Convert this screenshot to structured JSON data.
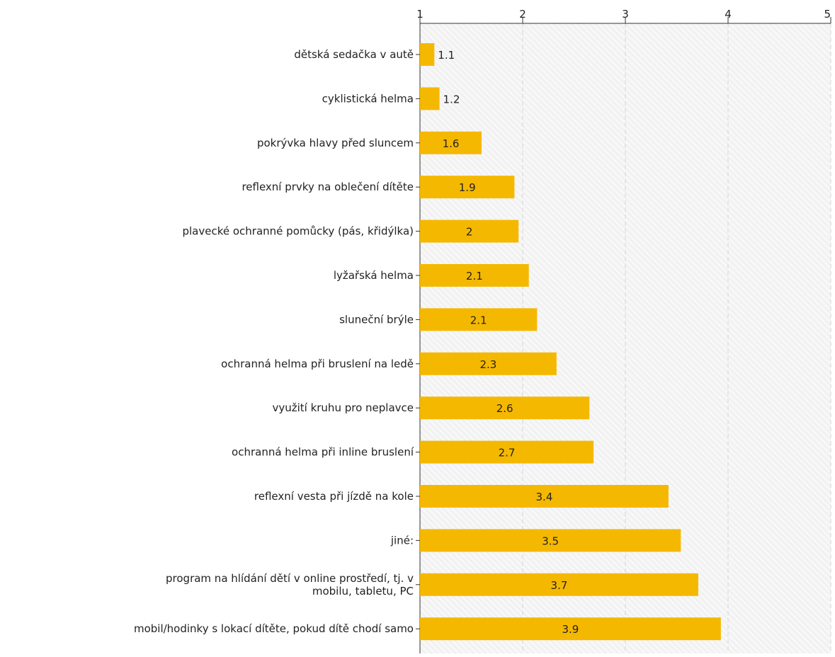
{
  "chart_data": {
    "type": "bar",
    "orientation": "horizontal",
    "title": "",
    "xlabel": "",
    "ylabel": "",
    "xlim": [
      1,
      5
    ],
    "ticks": [
      "1",
      "2",
      "3",
      "4",
      "5"
    ],
    "tick_values": [
      1,
      2,
      3,
      4,
      5
    ],
    "grid": true,
    "bar_color": "#f5b800",
    "categories": [
      [
        "dětská sedačka v autě"
      ],
      [
        "cyklistická helma"
      ],
      [
        "pokrývka hlavy před sluncem"
      ],
      [
        "reflexní prvky na oblečení dítěte"
      ],
      [
        "plavecké ochranné pomůcky (pás, křidýlka)"
      ],
      [
        "lyžařská helma"
      ],
      [
        "sluneční brýle"
      ],
      [
        "ochranná helma při bruslení na ledě"
      ],
      [
        "využití kruhu pro neplavce"
      ],
      [
        "ochranná helma při inline bruslení"
      ],
      [
        "reflexní vesta při jízdě na kole"
      ],
      [
        "jiné:"
      ],
      [
        "program na hlídání dětí v online prostředí, tj. v",
        "mobilu, tabletu, PC"
      ],
      [
        "mobil/hodinky s lokací dítěte, pokud dítě chodí samo"
      ]
    ],
    "values": [
      1.14,
      1.19,
      1.6,
      1.92,
      1.96,
      2.06,
      2.14,
      2.33,
      2.65,
      2.69,
      3.42,
      3.54,
      3.71,
      3.93
    ],
    "labels": [
      "1.1",
      "1.2",
      "1.6",
      "1.9",
      "2",
      "2.1",
      "2.1",
      "2.3",
      "2.6",
      "2.7",
      "3.4",
      "3.5",
      "3.7",
      "3.9"
    ]
  }
}
